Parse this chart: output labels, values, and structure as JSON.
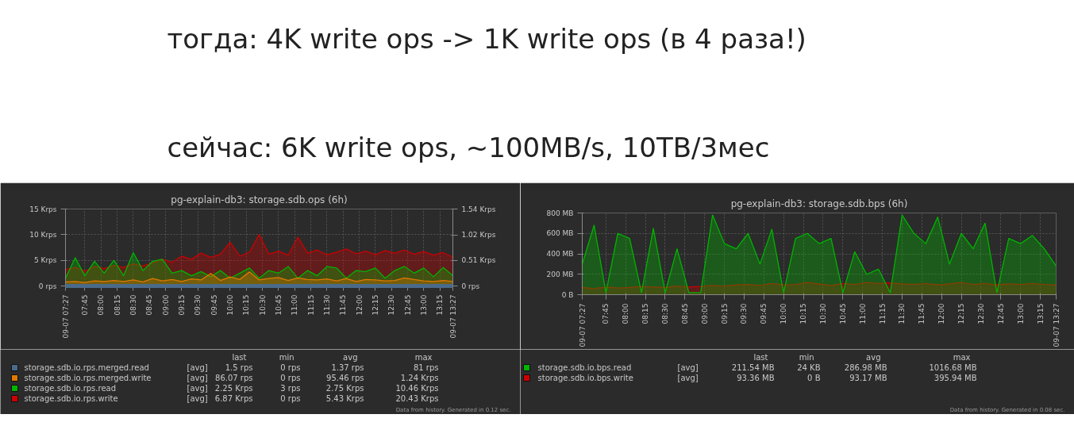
{
  "chart_data": [
    {
      "type": "other",
      "annotations": [
        "тогда: 4K write ops -> 1K write ops (в 4 раза!)",
        "сейчас: 6K write ops, ~100MB/s, 10TB/3мес"
      ]
    },
    {
      "type": "area",
      "title": "pg-explain-db3: storage.sdb.ops (6h)",
      "grid": true,
      "legend": "bottom",
      "xlim": [
        7.45,
        13.45
      ],
      "xticks": [
        {
          "value": 7.45,
          "label": "09-07 07:27"
        },
        {
          "value": 7.75,
          "label": "07:45"
        },
        {
          "value": 8,
          "label": "08:00"
        },
        {
          "value": 8.25,
          "label": "08:15"
        },
        {
          "value": 8.5,
          "label": "08:30"
        },
        {
          "value": 8.75,
          "label": "08:45"
        },
        {
          "value": 9,
          "label": "09:00"
        },
        {
          "value": 9.25,
          "label": "09:15"
        },
        {
          "value": 9.5,
          "label": "09:30"
        },
        {
          "value": 9.75,
          "label": "09:45"
        },
        {
          "value": 10,
          "label": "10:00"
        },
        {
          "value": 10.25,
          "label": "10:15"
        },
        {
          "value": 10.5,
          "label": "10:30"
        },
        {
          "value": 10.75,
          "label": "10:45"
        },
        {
          "value": 11,
          "label": "11:00"
        },
        {
          "value": 11.25,
          "label": "11:15"
        },
        {
          "value": 11.5,
          "label": "11:30"
        },
        {
          "value": 11.75,
          "label": "11:45"
        },
        {
          "value": 12,
          "label": "12:00"
        },
        {
          "value": 12.25,
          "label": "12:15"
        },
        {
          "value": 12.5,
          "label": "12:30"
        },
        {
          "value": 12.75,
          "label": "12:45"
        },
        {
          "value": 13,
          "label": "13:00"
        },
        {
          "value": 13.25,
          "label": "13:15"
        },
        {
          "value": 13.45,
          "label": "09-07 13:27"
        }
      ],
      "ylim": [
        0,
        15
      ],
      "yticks": [
        {
          "value": 0,
          "label": "0 rps"
        },
        {
          "value": 5,
          "label": "5 Krps"
        },
        {
          "value": 10,
          "label": "10 Krps"
        },
        {
          "value": 15,
          "label": "15 Krps"
        }
      ],
      "y2lim": [
        0,
        1.54
      ],
      "y2ticks": [
        {
          "value": 0,
          "label": "0 rps"
        },
        {
          "value": 0.51,
          "label": "0.51 Krps"
        },
        {
          "value": 1.02,
          "label": "1.02 Krps"
        },
        {
          "value": 1.54,
          "label": "1.54 Krps"
        }
      ],
      "x": [
        7.45,
        7.6,
        7.75,
        7.9,
        8.05,
        8.2,
        8.35,
        8.5,
        8.65,
        8.8,
        8.95,
        9.1,
        9.25,
        9.4,
        9.55,
        9.7,
        9.85,
        10.0,
        10.15,
        10.3,
        10.45,
        10.6,
        10.75,
        10.9,
        11.05,
        11.2,
        11.35,
        11.5,
        11.65,
        11.8,
        11.95,
        12.1,
        12.25,
        12.4,
        12.55,
        12.7,
        12.85,
        13.0,
        13.15,
        13.3,
        13.45
      ],
      "series": [
        {
          "name": "storage.sdb.io.rps.merged.read",
          "color": "#4a6a8a",
          "axis": "y2",
          "type": "line",
          "x": [
            7.45,
            13.45
          ],
          "values": [
            0,
            0
          ]
        },
        {
          "name": "storage.sdb.io.rps.merged.write",
          "color": "#e07800",
          "axis": "y2",
          "values": [
            0.08,
            0.09,
            0.07,
            0.1,
            0.09,
            0.11,
            0.09,
            0.12,
            0.08,
            0.15,
            0.1,
            0.13,
            0.09,
            0.14,
            0.12,
            0.25,
            0.11,
            0.18,
            0.13,
            0.28,
            0.12,
            0.15,
            0.17,
            0.11,
            0.16,
            0.13,
            0.12,
            0.14,
            0.1,
            0.15,
            0.09,
            0.13,
            0.12,
            0.1,
            0.11,
            0.16,
            0.13,
            0.1,
            0.09,
            0.11,
            0.09
          ]
        },
        {
          "name": "storage.sdb.io.rps.read",
          "color": "#00b400",
          "values": [
            1.5,
            5.5,
            2,
            4.8,
            2.5,
            5,
            2,
            6.5,
            3,
            4.8,
            5.2,
            2.5,
            3,
            2,
            2.8,
            1.8,
            3,
            1.5,
            2.5,
            3.5,
            1.5,
            3,
            2.5,
            3.8,
            1.5,
            3,
            2,
            3.8,
            3.5,
            1.5,
            3,
            2.8,
            3.5,
            1.5,
            3,
            3.8,
            2.5,
            3.5,
            1.8,
            3.6,
            2
          ]
        },
        {
          "name": "storage.sdb.io.rps.write",
          "color": "#cc0000",
          "values": [
            3.2,
            3.6,
            2.9,
            3.8,
            3.4,
            4,
            3.6,
            4.3,
            3.9,
            4.5,
            5.2,
            4.6,
            5.8,
            5.2,
            6.4,
            5.6,
            6.2,
            8.5,
            5.8,
            6.6,
            10,
            6.2,
            6.8,
            6,
            9.5,
            6.4,
            7,
            6.1,
            6.6,
            7.2,
            6.3,
            6.8,
            6.1,
            6.9,
            6.4,
            7,
            6.2,
            6.7,
            6,
            6.5,
            5.6
          ]
        }
      ],
      "annotations": [
        "last",
        "min",
        "avg",
        "max",
        "[avg]",
        "1.5 rps",
        "0 rps",
        "1.37 rps",
        "81 rps",
        "[avg]",
        "86.07 rps",
        "0 rps",
        "95.46 rps",
        "1.24 Krps",
        "[avg]",
        "2.25 Krps",
        "3 rps",
        "2.75 Krps",
        "10.46 Krps",
        "[avg]",
        "6.87 Krps",
        "0 rps",
        "5.43 Krps",
        "20.43 Krps",
        "Data from history. Generated in 0.12 sec."
      ]
    },
    {
      "type": "area",
      "title": "pg-explain-db3: storage.sdb.bps (6h)",
      "grid": true,
      "legend": "bottom",
      "xlim": [
        7.45,
        13.45
      ],
      "xticks": [
        {
          "value": 7.45,
          "label": "09-07 07:27"
        },
        {
          "value": 7.75,
          "label": "07:45"
        },
        {
          "value": 8,
          "label": "08:00"
        },
        {
          "value": 8.25,
          "label": "08:15"
        },
        {
          "value": 8.5,
          "label": "08:30"
        },
        {
          "value": 8.75,
          "label": "08:45"
        },
        {
          "value": 9,
          "label": "09:00"
        },
        {
          "value": 9.25,
          "label": "09:15"
        },
        {
          "value": 9.5,
          "label": "09:30"
        },
        {
          "value": 9.75,
          "label": "09:45"
        },
        {
          "value": 10,
          "label": "10:00"
        },
        {
          "value": 10.25,
          "label": "10:15"
        },
        {
          "value": 10.5,
          "label": "10:30"
        },
        {
          "value": 10.75,
          "label": "10:45"
        },
        {
          "value": 11,
          "label": "11:00"
        },
        {
          "value": 11.25,
          "label": "11:15"
        },
        {
          "value": 11.5,
          "label": "11:30"
        },
        {
          "value": 11.75,
          "label": "11:45"
        },
        {
          "value": 12,
          "label": "12:00"
        },
        {
          "value": 12.25,
          "label": "12:15"
        },
        {
          "value": 12.5,
          "label": "12:30"
        },
        {
          "value": 12.75,
          "label": "12:45"
        },
        {
          "value": 13,
          "label": "13:00"
        },
        {
          "value": 13.25,
          "label": "13:15"
        },
        {
          "value": 13.45,
          "label": "09-07 13:27"
        }
      ],
      "ylim": [
        0,
        800
      ],
      "yticks": [
        {
          "value": 0,
          "label": "0 B"
        },
        {
          "value": 200,
          "label": "200 MB"
        },
        {
          "value": 400,
          "label": "400 MB"
        },
        {
          "value": 600,
          "label": "600 MB"
        },
        {
          "value": 800,
          "label": "800 MB"
        }
      ],
      "x": [
        7.45,
        7.6,
        7.75,
        7.9,
        8.05,
        8.2,
        8.35,
        8.5,
        8.65,
        8.8,
        8.95,
        9.1,
        9.25,
        9.4,
        9.55,
        9.7,
        9.85,
        10.0,
        10.15,
        10.3,
        10.45,
        10.6,
        10.75,
        10.9,
        11.05,
        11.2,
        11.35,
        11.5,
        11.65,
        11.8,
        11.95,
        12.1,
        12.25,
        12.4,
        12.55,
        12.7,
        12.85,
        13.0,
        13.15,
        13.3,
        13.45
      ],
      "series": [
        {
          "name": "storage.sdb.io.bps.read",
          "color": "#00b400",
          "values": [
            300,
            680,
            20,
            600,
            550,
            20,
            650,
            20,
            450,
            20,
            20,
            780,
            500,
            450,
            600,
            300,
            640,
            20,
            550,
            600,
            500,
            550,
            20,
            420,
            200,
            250,
            20,
            780,
            600,
            500,
            760,
            300,
            600,
            450,
            700,
            20,
            550,
            500,
            580,
            450,
            280
          ]
        },
        {
          "name": "storage.sdb.io.bps.write",
          "color": "#cc0000",
          "values": [
            70,
            60,
            75,
            65,
            70,
            80,
            75,
            70,
            85,
            75,
            80,
            90,
            85,
            95,
            100,
            90,
            110,
            95,
            100,
            120,
            105,
            90,
            110,
            100,
            120,
            110,
            115,
            105,
            100,
            110,
            95,
            105,
            120,
            100,
            110,
            95,
            105,
            100,
            110,
            100,
            95
          ]
        }
      ],
      "annotations": [
        "last",
        "min",
        "avg",
        "max",
        "[avg]",
        "211.54 MB",
        "24 KB",
        "286.98 MB",
        "1016.68 MB",
        "[avg]",
        "93.36 MB",
        "0 B",
        "93.17 MB",
        "395.94 MB",
        "Data from history. Generated in 0.08 sec."
      ]
    }
  ]
}
